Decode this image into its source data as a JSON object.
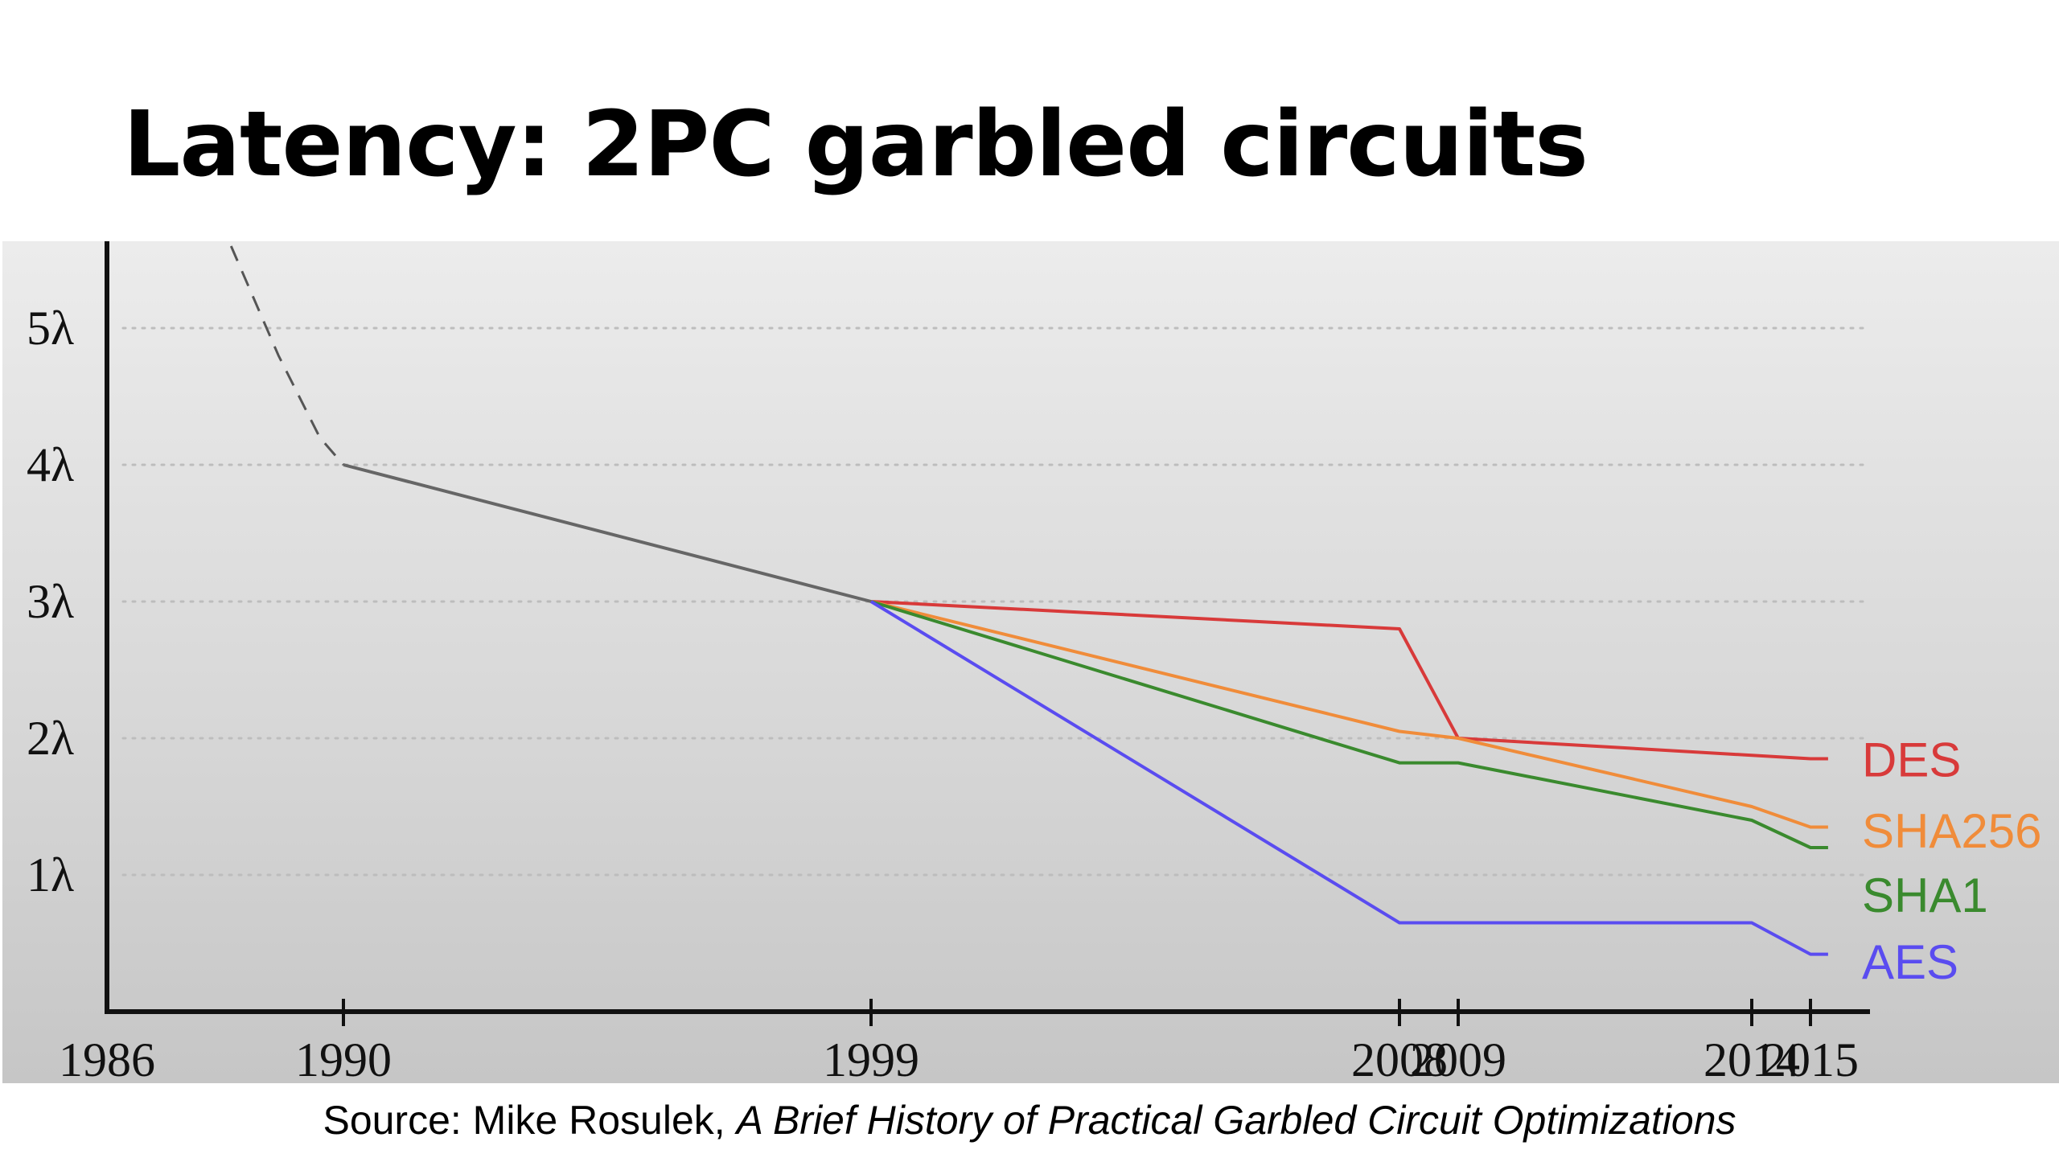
{
  "slide": {
    "title": "Latency: 2PC garbled circuits",
    "caption_prefix": "Source: Mike Rosulek, ",
    "caption_citation": "A Brief History of Practical Garbled Circuit Optimizations"
  },
  "chart_data": {
    "type": "line",
    "title": "",
    "xlabel": "",
    "ylabel": "",
    "x_ticks": [
      1986,
      1990,
      1999,
      2008,
      2009,
      2014,
      2015
    ],
    "y_ticks": [
      {
        "value": 1,
        "label": "1λ"
      },
      {
        "value": 2,
        "label": "2λ"
      },
      {
        "value": 3,
        "label": "3λ"
      },
      {
        "value": 4,
        "label": "4λ"
      },
      {
        "value": 5,
        "label": "5λ"
      }
    ],
    "ylim": [
      0,
      5.6
    ],
    "grid": "horizontal dotted",
    "common_trend": {
      "dashed_segment": [
        {
          "x": 1988.1,
          "y": 5.6
        },
        {
          "x": 1988.9,
          "y": 4.8
        },
        {
          "x": 1989.6,
          "y": 4.2
        },
        {
          "x": 1990,
          "y": 4.0
        }
      ],
      "solid_segment": [
        {
          "x": 1990,
          "y": 4.0
        },
        {
          "x": 1999,
          "y": 3.0
        }
      ],
      "color": "#666666"
    },
    "series": [
      {
        "name": "DES",
        "color": "#d83a3a",
        "points": [
          {
            "x": 1999,
            "y": 3.0
          },
          {
            "x": 2008,
            "y": 2.8
          },
          {
            "x": 2009,
            "y": 2.0
          },
          {
            "x": 2015,
            "y": 1.85
          },
          {
            "x": 2015.3,
            "y": 1.85
          }
        ]
      },
      {
        "name": "SHA256",
        "color": "#f08c3a",
        "points": [
          {
            "x": 1999,
            "y": 3.0
          },
          {
            "x": 2008,
            "y": 2.05
          },
          {
            "x": 2009,
            "y": 2.0
          },
          {
            "x": 2014,
            "y": 1.5
          },
          {
            "x": 2015,
            "y": 1.35
          },
          {
            "x": 2015.3,
            "y": 1.35
          }
        ]
      },
      {
        "name": "SHA1",
        "color": "#3a8a2e",
        "points": [
          {
            "x": 1999,
            "y": 3.0
          },
          {
            "x": 2008,
            "y": 1.82
          },
          {
            "x": 2009,
            "y": 1.82
          },
          {
            "x": 2014,
            "y": 1.4
          },
          {
            "x": 2015,
            "y": 1.2
          },
          {
            "x": 2015.3,
            "y": 1.2
          }
        ]
      },
      {
        "name": "AES",
        "color": "#5a4cf0",
        "points": [
          {
            "x": 1999,
            "y": 3.0
          },
          {
            "x": 2008,
            "y": 0.65
          },
          {
            "x": 2014,
            "y": 0.65
          },
          {
            "x": 2015,
            "y": 0.42
          },
          {
            "x": 2015.3,
            "y": 0.42
          }
        ]
      }
    ],
    "legend": "inline labels at right end of each line"
  }
}
